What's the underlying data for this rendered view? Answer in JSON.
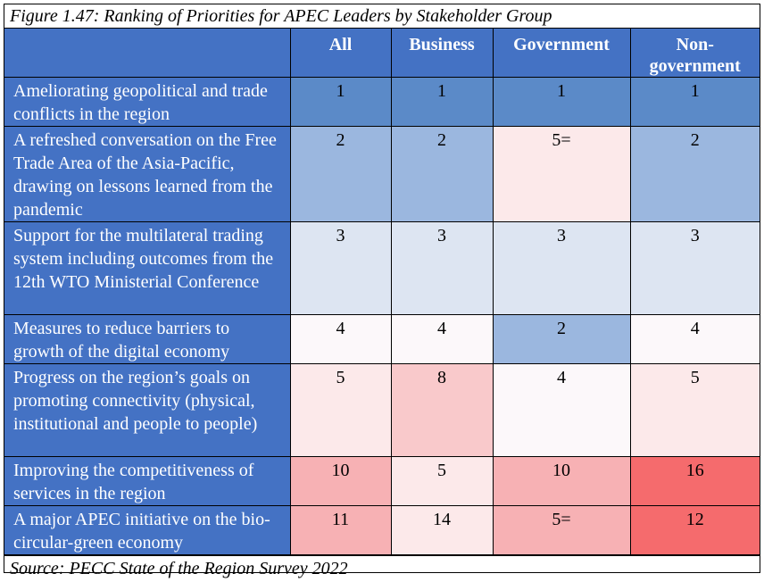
{
  "caption": "Figure 1.47: Ranking of Priorities for APEC Leaders by Stakeholder Group",
  "columns": [
    "All",
    "Business",
    "Government",
    "Non-government"
  ],
  "rows": [
    {
      "label": "Ameliorating geopolitical and trade conflicts in the region",
      "values": [
        "1",
        "1",
        "1",
        "1"
      ],
      "colors": [
        "#5b8ac8",
        "#5b8ac8",
        "#5b8ac8",
        "#5b8ac8"
      ]
    },
    {
      "label": "A refreshed conversation on the Free Trade Area of the Asia-Pacific, drawing on lessons learned from the pandemic",
      "values": [
        "2",
        "2",
        "5=",
        "2"
      ],
      "colors": [
        "#9bb7df",
        "#9bb7df",
        "#fce9ea",
        "#9bb7df"
      ]
    },
    {
      "label": "Support for the multilateral trading system including outcomes from the 12th WTO Ministerial Conference",
      "values": [
        "3",
        "3",
        "3",
        "3"
      ],
      "colors": [
        "#dde5f2",
        "#dde5f2",
        "#dde5f2",
        "#dde5f2"
      ]
    },
    {
      "label": "Measures to reduce barriers to growth of the digital economy",
      "values": [
        "4",
        "4",
        "2",
        "4"
      ],
      "colors": [
        "#fcf8fa",
        "#fcf8fa",
        "#9bb7df",
        "#fcf8fa"
      ]
    },
    {
      "label": "Progress on the region’s goals on promoting connectivity (physical, institutional and people to people)",
      "values": [
        "5",
        "8",
        "4",
        "5"
      ],
      "colors": [
        "#fce9ea",
        "#f9c9cb",
        "#fcf8fa",
        "#fce9ea"
      ]
    },
    {
      "label": "Improving the competitiveness of services in the region",
      "values": [
        "10",
        "5",
        "10",
        "16"
      ],
      "colors": [
        "#f7b1b4",
        "#fce9ea",
        "#f7b1b4",
        "#f56b6d"
      ]
    },
    {
      "label": "A major APEC initiative on the bio-circular-green economy",
      "values": [
        "11",
        "14",
        "5=",
        "12"
      ],
      "colors": [
        "#f7b1b4",
        "#fce9ea",
        "#f7b1b4",
        "#f56b6d"
      ]
    }
  ],
  "source": "Source: PECC State of the Region Survey 2022"
}
